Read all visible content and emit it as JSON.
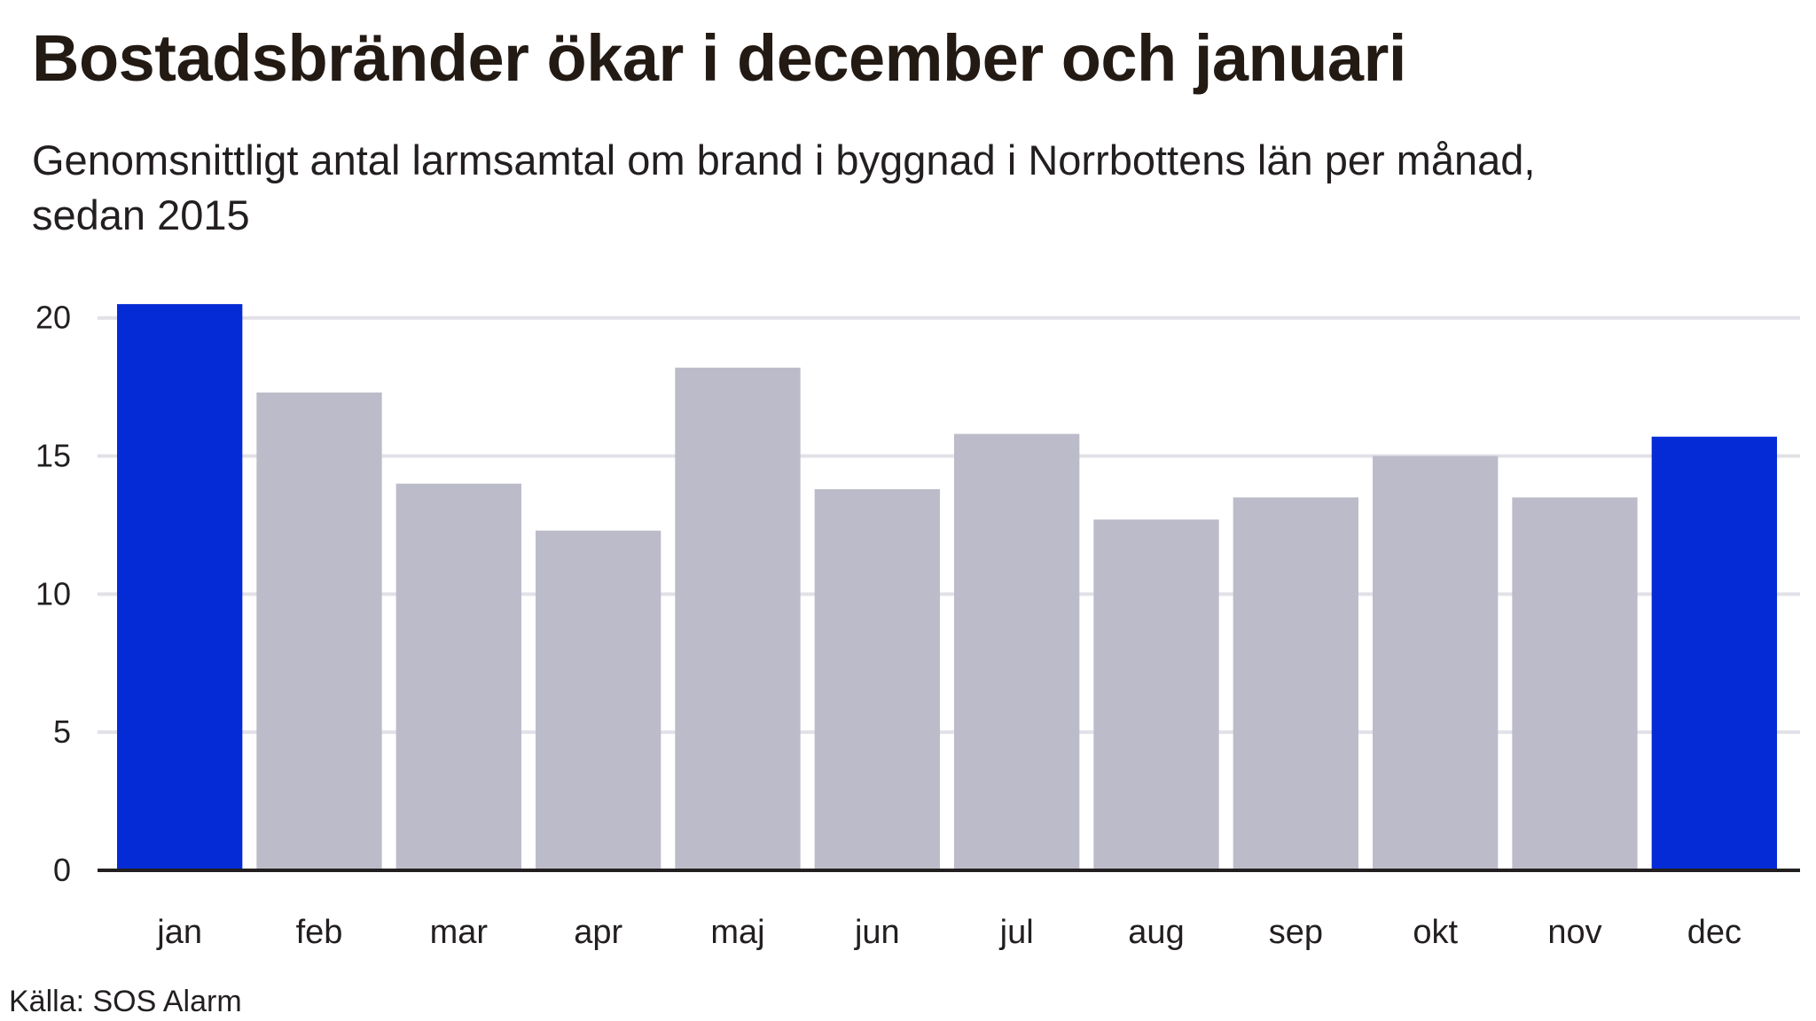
{
  "title": "Bostadsbränder ökar i december och januari",
  "subtitle": "Genomsnittligt antal larmsamtal om brand i byggnad i Norrbottens län per månad, sedan 2015",
  "source": "Källa: SOS Alarm",
  "colors": {
    "highlight": "#052bd6",
    "default": "#bcbbc9",
    "grid": "#e2e1e8",
    "axis": "#231f20",
    "text": "#231f20"
  },
  "chart_data": {
    "type": "bar",
    "categories": [
      "jan",
      "feb",
      "mar",
      "apr",
      "maj",
      "jun",
      "jul",
      "aug",
      "sep",
      "okt",
      "nov",
      "dec"
    ],
    "values": [
      20.5,
      17.3,
      14.0,
      12.3,
      18.2,
      13.8,
      15.8,
      12.7,
      13.5,
      15.0,
      13.5,
      15.7
    ],
    "highlighted": [
      "jan",
      "dec"
    ],
    "yticks": [
      0,
      5,
      10,
      15,
      20
    ],
    "ylim": [
      0,
      20.6
    ],
    "grid": true,
    "legend": "none"
  }
}
